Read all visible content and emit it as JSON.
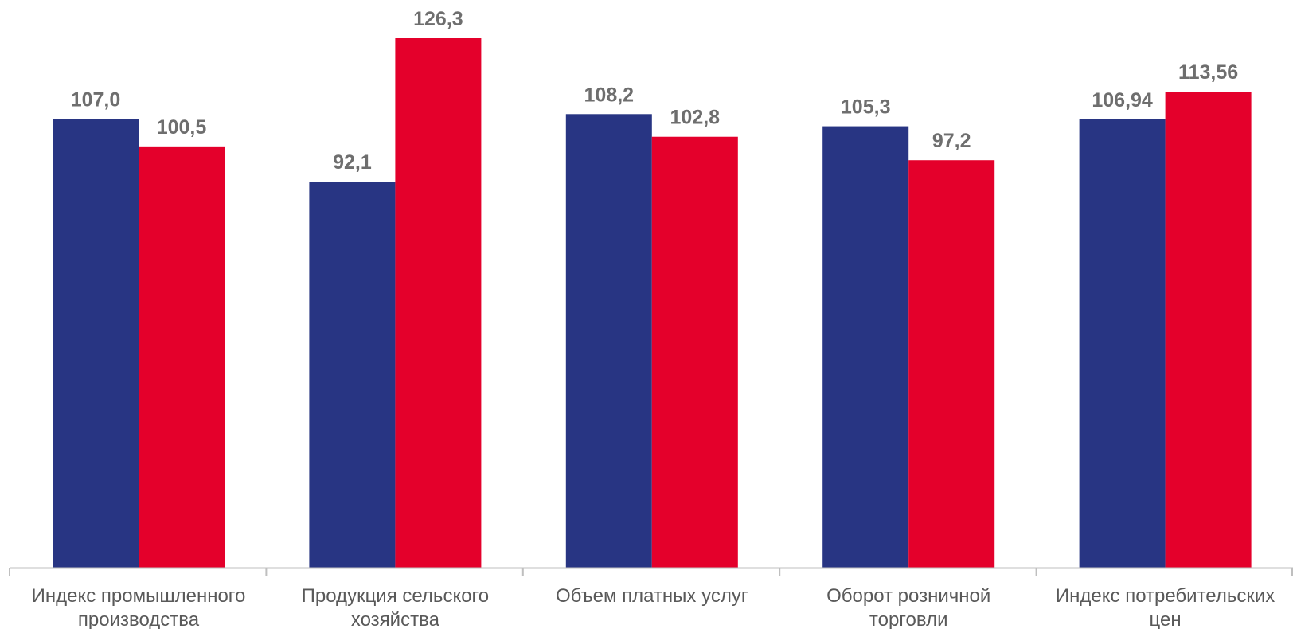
{
  "chart_data": {
    "type": "bar",
    "categories": [
      [
        "Индекс промышленного",
        "производства"
      ],
      [
        "Продукция сельского",
        "хозяйства"
      ],
      [
        "Объем платных услуг"
      ],
      [
        "Оборот розничной",
        "торговли"
      ],
      [
        "Индекс потребительских",
        "цен"
      ]
    ],
    "series": [
      {
        "values": [
          107.0,
          92.1,
          108.2,
          105.3,
          106.94
        ],
        "labels": [
          "107,0",
          "92,1",
          "108,2",
          "105,3",
          "106,94"
        ],
        "color": "#283583"
      },
      {
        "values": [
          100.5,
          126.3,
          102.8,
          97.2,
          113.56
        ],
        "labels": [
          "100,5",
          "126,3",
          "102,8",
          "97,2",
          "113,56"
        ],
        "color": "#e4002b"
      }
    ],
    "ylim": [
      0,
      126.3
    ],
    "grid": false,
    "legend": "none",
    "axis_color": "#bfbfbf",
    "label_color": "#6e6e6e",
    "category_color": "#595959"
  }
}
